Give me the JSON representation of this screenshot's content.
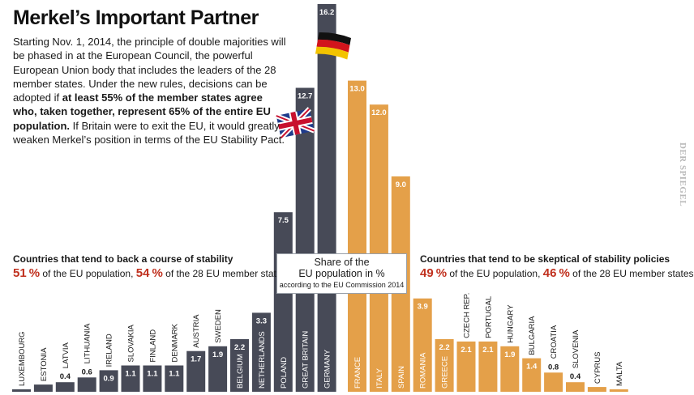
{
  "header": {
    "title": "Merkel’s Important Partner",
    "intro_pre": "Starting Nov. 1, 2014, the principle of double majorities will be phased in at the European Council, the powerful European Union body that includes the leaders of the 28 member states. Under the new rules, decisions can be adopted if ",
    "intro_bold": "at least 55% of the member states agree who, taken together, represent 65% of the entire EU population.",
    "intro_post": " If Britain were to exit the EU, it would greatly weaken Merkel’s position in terms of the EU Stability Pact."
  },
  "groups": {
    "left": {
      "heading": "Countries that tend to back a course of stability",
      "pop_pct": "51 %",
      "pop_text": " of the EU population, ",
      "states_pct": "54 %",
      "states_text": " of the 28 EU member states"
    },
    "right": {
      "heading": "Countries that tend to be skeptical of stability policies",
      "pop_pct": "49 %",
      "pop_text": " of the EU population, ",
      "states_pct": "46 %",
      "states_text": " of the 28 EU member states"
    }
  },
  "legend": {
    "line1": "Share of the",
    "line2": "EU population in %",
    "line3": "according to the EU Commission 2014"
  },
  "credit": "DER SPIEGEL",
  "colors": {
    "stability": "#474a57",
    "skeptical": "#e4a049",
    "accent": "#c0301e",
    "label_light": "#ffffff",
    "label_dark": "#1a1a1a"
  },
  "flags": [
    "uk-flag",
    "germany-flag"
  ],
  "chart_data": {
    "type": "bar",
    "title": "Share of the EU population in %",
    "subtitle": "according to the EU Commission 2014",
    "ylim": [
      0,
      16.2
    ],
    "grid": false,
    "series": [
      {
        "name": "Countries that tend to back a course of stability",
        "color": "#474a57",
        "categories": [
          "LUXEMBOURG",
          "ESTONIA",
          "LATVIA",
          "LITHUANIA",
          "IRELAND",
          "SLOVAKIA",
          "FINLAND",
          "DENMARK",
          "AUSTRIA",
          "SWEDEN",
          "BELGIUM",
          "NETHERLANDS",
          "POLAND",
          "GREAT BRITAIN",
          "GERMANY"
        ],
        "values": [
          0.1,
          0.3,
          0.4,
          0.6,
          0.9,
          1.1,
          1.1,
          1.1,
          1.7,
          1.9,
          2.2,
          3.3,
          7.5,
          12.7,
          16.2
        ],
        "value_labels": [
          "",
          "",
          "0.4",
          "0.6",
          "0.9",
          "1.1",
          "1.1",
          "1.1",
          "1.7",
          "1.9",
          "2.2",
          "3.3",
          "7.5",
          "12.7",
          "16.2"
        ]
      },
      {
        "name": "Countries that tend to be skeptical of stability policies",
        "color": "#e4a049",
        "categories": [
          "FRANCE",
          "ITALY",
          "SPAIN",
          "ROMANIA",
          "GREECE",
          "CZECH REP.",
          "PORTUGAL",
          "HUNGARY",
          "BULGARIA",
          "CROATIA",
          "SLOVENIA",
          "CYPRUS",
          "MALTA"
        ],
        "values": [
          13.0,
          12.0,
          9.0,
          3.9,
          2.2,
          2.1,
          2.1,
          1.9,
          1.4,
          0.8,
          0.4,
          0.2,
          0.1
        ],
        "value_labels": [
          "13.0",
          "12.0",
          "9.0",
          "3.9",
          "2.2",
          "2.1",
          "2.1",
          "1.9",
          "1.4",
          "0.8",
          "0.4",
          "",
          ""
        ]
      }
    ]
  }
}
